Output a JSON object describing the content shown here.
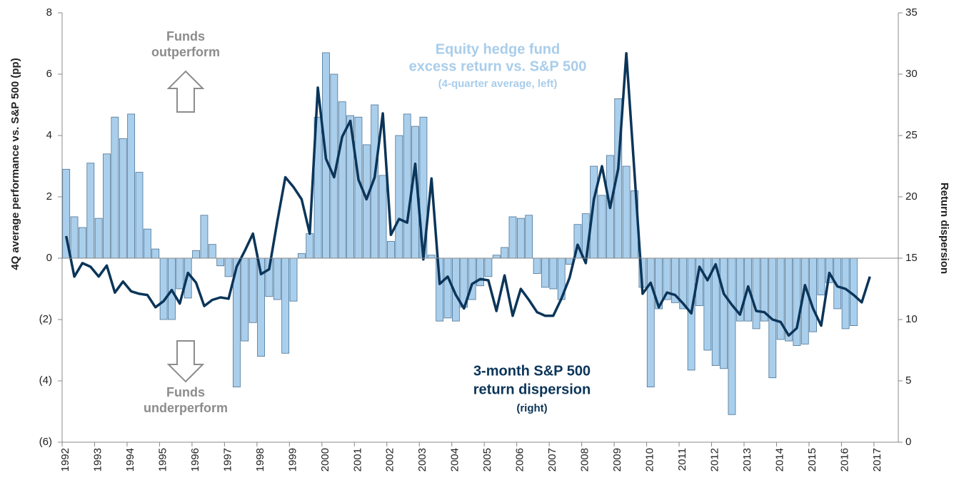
{
  "chart_data": {
    "type": "bar-line",
    "y_label": "4Q average performance vs. S&P 500 (pp)",
    "y2_label": "Return dispersion",
    "x": [
      1992.125,
      1992.375,
      1992.625,
      1992.875,
      1993.125,
      1993.375,
      1993.625,
      1993.875,
      1994.125,
      1994.375,
      1994.625,
      1994.875,
      1995.125,
      1995.375,
      1995.625,
      1995.875,
      1996.125,
      1996.375,
      1996.625,
      1996.875,
      1997.125,
      1997.375,
      1997.625,
      1997.875,
      1998.125,
      1998.375,
      1998.625,
      1998.875,
      1999.125,
      1999.375,
      1999.625,
      1999.875,
      2000.125,
      2000.375,
      2000.625,
      2000.875,
      2001.125,
      2001.375,
      2001.625,
      2001.875,
      2002.125,
      2002.375,
      2002.625,
      2002.875,
      2003.125,
      2003.375,
      2003.625,
      2003.875,
      2004.125,
      2004.375,
      2004.625,
      2004.875,
      2005.125,
      2005.375,
      2005.625,
      2005.875,
      2006.125,
      2006.375,
      2006.625,
      2006.875,
      2007.125,
      2007.375,
      2007.625,
      2007.875,
      2008.125,
      2008.375,
      2008.625,
      2008.875,
      2009.125,
      2009.375,
      2009.625,
      2009.875,
      2010.125,
      2010.375,
      2010.625,
      2010.875,
      2011.125,
      2011.375,
      2011.625,
      2011.875,
      2012.125,
      2012.375,
      2012.625,
      2012.875,
      2013.125,
      2013.375,
      2013.625,
      2013.875,
      2014.125,
      2014.375,
      2014.625,
      2014.875,
      2015.125,
      2015.375,
      2015.625,
      2015.875,
      2016.125,
      2016.375,
      2016.625,
      2016.875
    ],
    "series": [
      {
        "name": "Equity hedge fund excess return vs. S&P 500 (4-quarter average, left)",
        "kind": "bar",
        "color": "#aacfec",
        "edge": "#4d7394",
        "values": [
          2.9,
          1.35,
          1.0,
          3.1,
          1.3,
          3.4,
          4.6,
          3.9,
          4.7,
          2.8,
          0.95,
          0.3,
          -2.0,
          -2.0,
          -1.0,
          -1.3,
          0.25,
          1.4,
          0.45,
          -0.25,
          -0.6,
          -4.2,
          -2.7,
          -2.1,
          -3.2,
          -1.25,
          -1.35,
          -3.1,
          -1.4,
          0.15,
          0.8,
          4.6,
          6.7,
          6.0,
          5.1,
          4.65,
          4.6,
          3.7,
          5.0,
          2.7,
          0.55,
          4.0,
          4.7,
          4.3,
          4.6,
          0.1,
          -2.05,
          -1.95,
          -2.05,
          -1.6,
          -1.35,
          -0.9,
          -0.6,
          0.1,
          0.35,
          1.35,
          1.3,
          1.4,
          -0.5,
          -0.95,
          -1.0,
          -1.35,
          -0.2,
          1.1,
          1.45,
          3.0,
          2.05,
          3.35,
          5.2,
          3.0,
          2.2,
          -0.95,
          -4.2,
          -1.65,
          -1.35,
          -1.45,
          -1.65,
          -3.65,
          -1.55,
          -3.0,
          -3.5,
          -3.6,
          -5.1,
          -2.05,
          -2.05,
          -2.3,
          -2.05,
          -3.9,
          -2.65,
          -2.7,
          -2.85,
          -2.8,
          -2.4,
          -1.2,
          -0.8,
          -1.65,
          -2.3,
          -2.2,
          null,
          null
        ]
      },
      {
        "name": "3-month S&P 500 return dispersion (right)",
        "kind": "line",
        "axis": "y2",
        "color": "#0b3559",
        "values": [
          16.8,
          13.5,
          14.6,
          14.3,
          13.5,
          14.4,
          12.2,
          13.1,
          12.3,
          12.1,
          12.0,
          11.0,
          11.5,
          12.4,
          11.3,
          13.8,
          13.0,
          11.1,
          11.6,
          11.8,
          11.7,
          14.3,
          15.6,
          17.0,
          13.7,
          14.1,
          18.0,
          21.6,
          20.8,
          19.8,
          17.0,
          28.9,
          23.1,
          21.6,
          24.9,
          26.2,
          21.4,
          19.8,
          21.6,
          26.8,
          16.9,
          18.2,
          17.9,
          22.7,
          14.9,
          21.5,
          12.9,
          13.5,
          12.0,
          10.9,
          12.9,
          13.3,
          13.2,
          10.7,
          13.6,
          10.3,
          12.5,
          11.6,
          10.6,
          10.3,
          10.3,
          11.7,
          13.4,
          16.1,
          14.6,
          19.8,
          22.5,
          19.1,
          22.3,
          31.7,
          22.0,
          12.1,
          13.0,
          11.0,
          12.2,
          12.0,
          11.3,
          10.5,
          14.3,
          13.2,
          14.5,
          12.1,
          11.2,
          10.4,
          12.7,
          10.7,
          10.6,
          10.0,
          9.8,
          8.7,
          9.3,
          12.8,
          10.9,
          9.5,
          13.8,
          12.7,
          12.5,
          12.0,
          11.4,
          13.5
        ]
      }
    ],
    "annotations": [
      {
        "lines": [
          "Funds",
          "outperform"
        ],
        "color": "#8c8c8c"
      },
      {
        "lines": [
          "Funds",
          "underperform"
        ],
        "color": "#8c8c8c"
      },
      {
        "lines": [
          "Equity hedge fund",
          "excess return vs. S&P 500",
          "(4-quarter average, left)"
        ],
        "color": "#a9cdea"
      },
      {
        "lines": [
          "3-month S&P 500",
          "return dispersion",
          "(right)"
        ],
        "color": "#0b3559"
      }
    ],
    "xlim": [
      1992,
      2017.75
    ],
    "xticks": [
      1992,
      1993,
      1994,
      1995,
      1996,
      1997,
      1998,
      1999,
      2000,
      2001,
      2002,
      2003,
      2004,
      2005,
      2006,
      2007,
      2008,
      2009,
      2010,
      2011,
      2012,
      2013,
      2014,
      2015,
      2016,
      2017
    ],
    "ylim": [
      -6,
      8
    ],
    "yticks": [
      {
        "value": -6,
        "label": "(6)"
      },
      {
        "value": -4,
        "label": "(4)"
      },
      {
        "value": -2,
        "label": "(2)"
      },
      0,
      2,
      4,
      6,
      8
    ],
    "y2lim": [
      0,
      35
    ],
    "y2ticks": [
      0,
      5,
      10,
      15,
      20,
      25,
      30,
      35
    ]
  }
}
